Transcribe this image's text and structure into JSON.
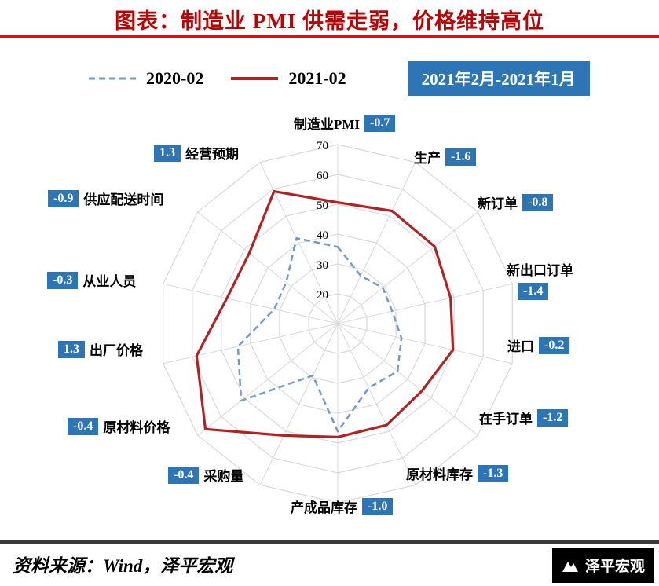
{
  "title": "图表：制造业 PMI 供需走弱，价格维持高位",
  "legend": {
    "period_badge": "2021年2月-2021年1月"
  },
  "footer": {
    "source": "资料来源：Wind，泽平宏观",
    "logo_text": "泽平宏观"
  },
  "colors": {
    "accent_red": "#c00000",
    "rule_red": "#ff0000",
    "badge_blue": "#2e75b6",
    "grid_gray": "#d9d9d9",
    "series_2020": "#7399c9",
    "series_2021": "#b22222"
  },
  "chart_data": {
    "type": "radar",
    "title": "制造业PMI供需走弱，价格维持高位",
    "categories": [
      "制造业PMI",
      "生产",
      "新订单",
      "新出口订单",
      "进口",
      "在手订单",
      "原材料库存",
      "产成品库存",
      "采购量",
      "原材料价格",
      "出厂价格",
      "从业人员",
      "供应配送时间",
      "经营预期"
    ],
    "deltas": [
      "-0.7",
      "-1.6",
      "-0.8",
      "-1.4",
      "-0.2",
      "-1.2",
      "-1.3",
      "-1.0",
      "-0.4",
      "-0.4",
      "1.3",
      "-0.3",
      "-0.9",
      "1.3"
    ],
    "series": [
      {
        "name": "2020-02",
        "values": [
          35.7,
          27.8,
          29.3,
          28.7,
          31.9,
          35.6,
          33.9,
          46.1,
          29.3,
          51.4,
          44.3,
          31.8,
          32.1,
          41.8
        ]
      },
      {
        "name": "2021-02",
        "values": [
          50.6,
          51.9,
          51.5,
          48.8,
          49.6,
          46.1,
          47.7,
          48.0,
          51.6,
          66.7,
          58.5,
          48.1,
          47.9,
          59.2
        ]
      }
    ],
    "radial_axis": {
      "min": 10,
      "max": 70,
      "ticks": [
        20,
        30,
        40,
        50,
        60,
        70
      ]
    },
    "legend_position": "top",
    "grid": true
  }
}
